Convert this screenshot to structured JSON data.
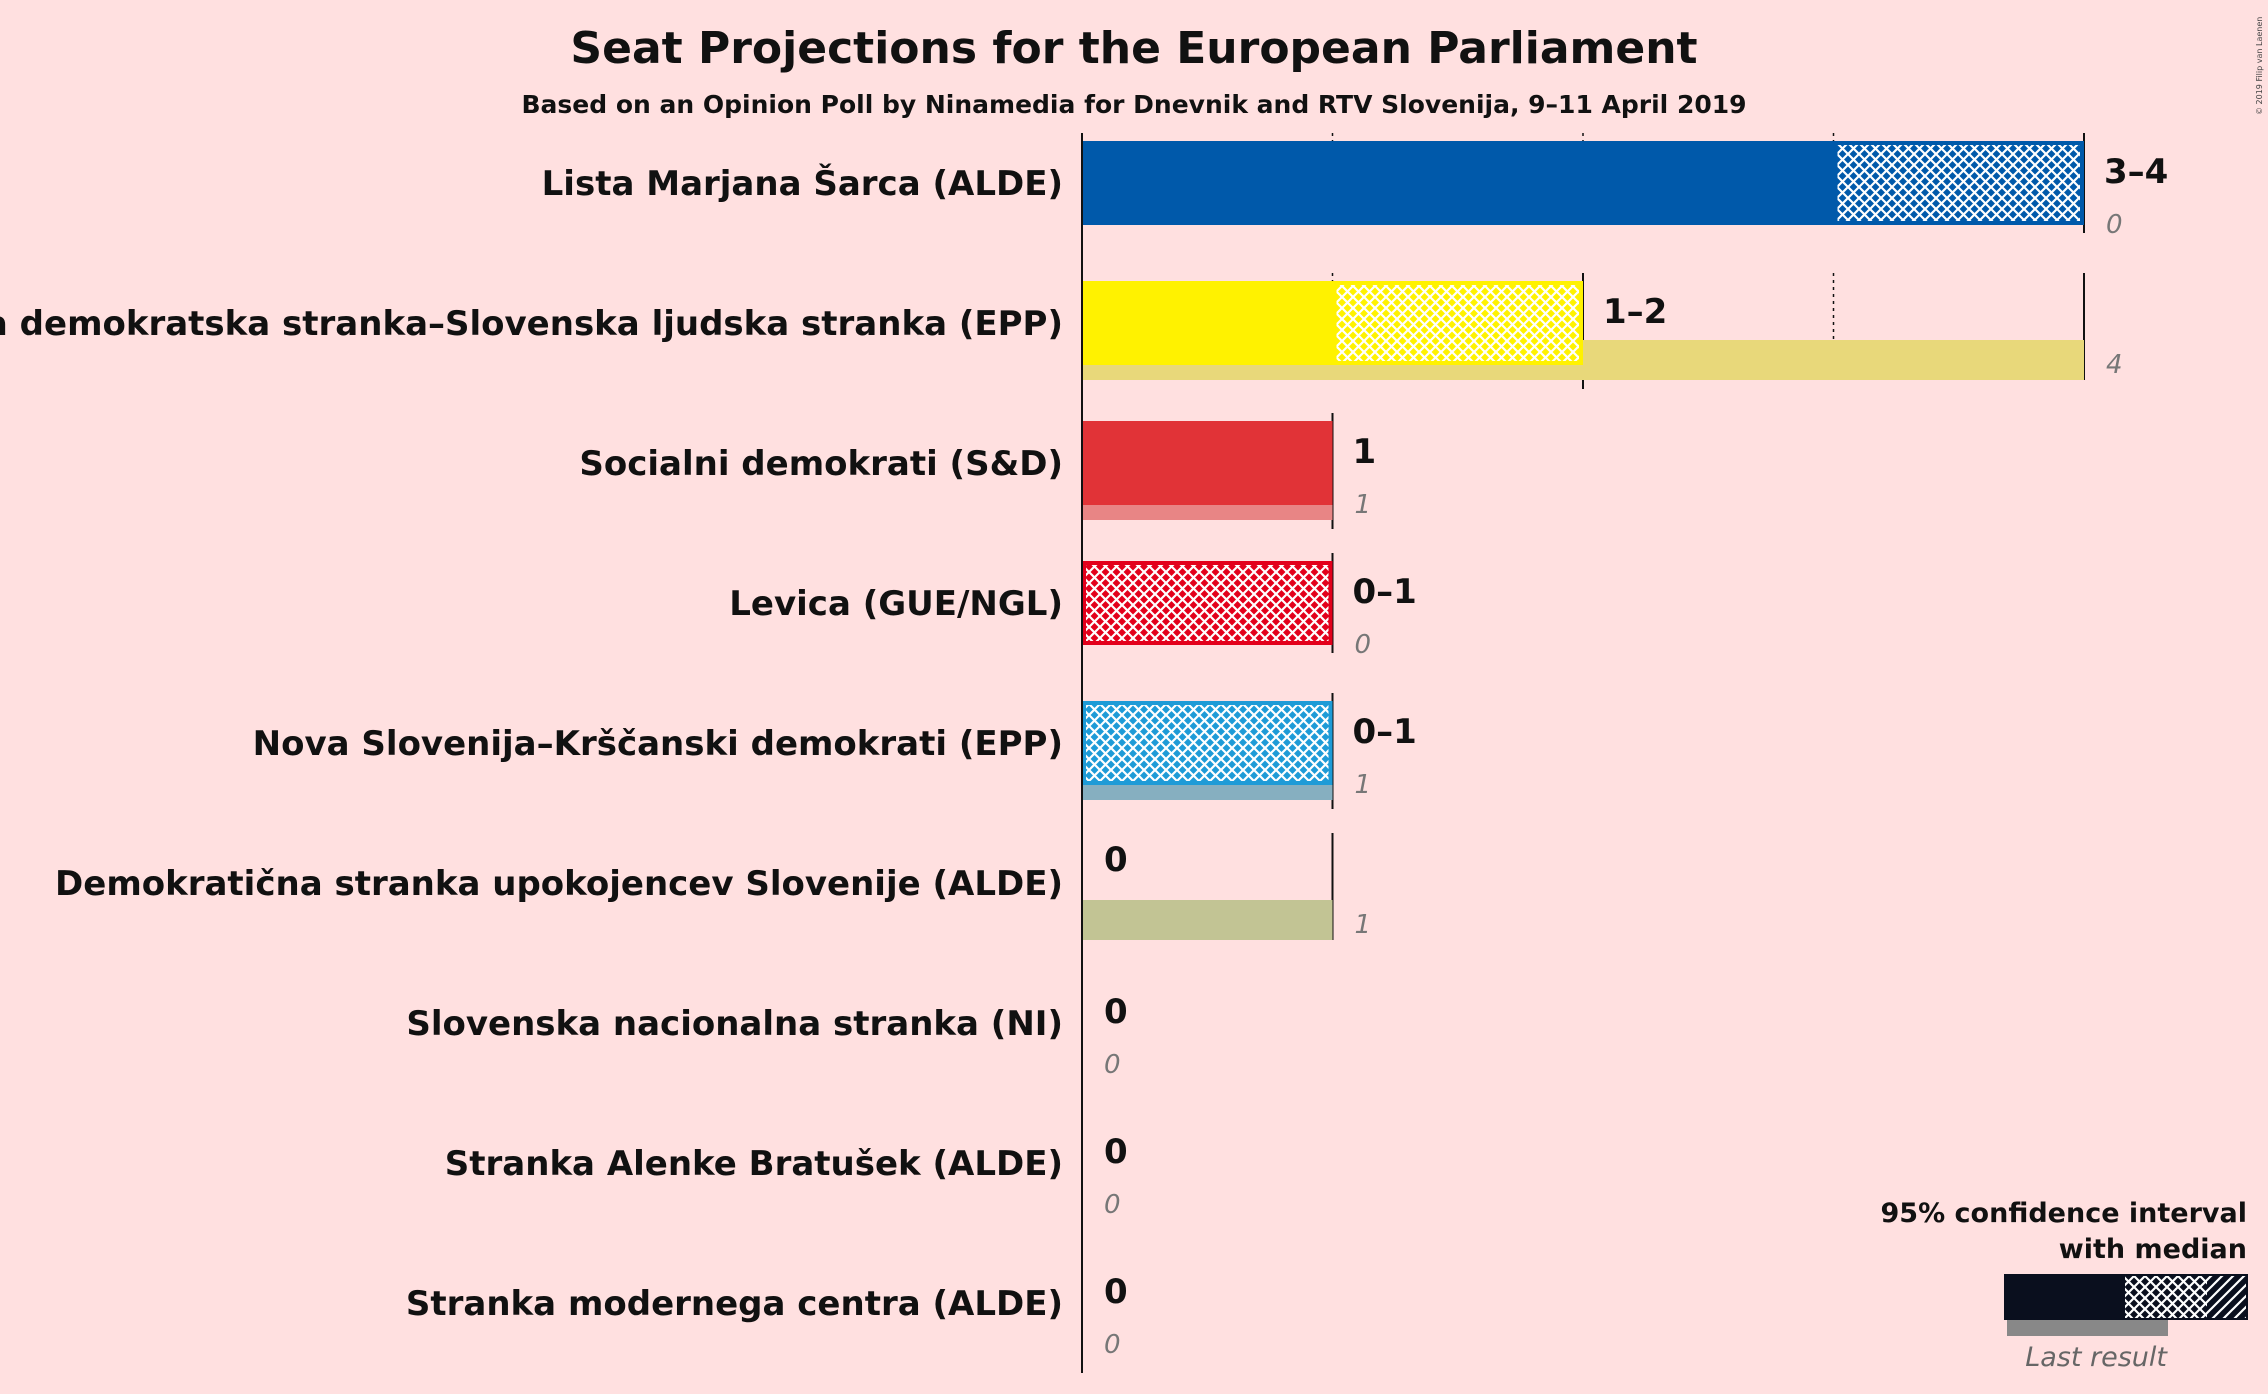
{
  "chart_data": {
    "type": "bar",
    "orientation": "horizontal",
    "title": "Seat Projections for the European Parliament",
    "subtitle": "Based on an Opinion Poll by Ninamedia for Dnevnik and RTV Slovenija, 9–11 April 2019",
    "xlim": [
      0,
      4
    ],
    "gridlines": [
      1,
      2,
      3,
      4
    ],
    "series": [
      {
        "name": "Lista Marjana Šarca (ALDE)",
        "low": 3,
        "median": 3,
        "high": 4,
        "range_label": "3–4",
        "last_result": 0,
        "last_label": "0",
        "color": "#0059aa",
        "last_color": "#0059aa"
      },
      {
        "name": "Slovenska demokratska stranka–Slovenska ljudska stranka (EPP)",
        "low": 1,
        "median": 1,
        "high": 2,
        "range_label": "1–2",
        "last_result": 4,
        "last_label": "4",
        "color": "#fff200",
        "last_color": "#e8d87a"
      },
      {
        "name": "Socialni demokrati (S&D)",
        "low": 1,
        "median": 1,
        "high": 1,
        "range_label": "1",
        "last_result": 1,
        "last_label": "1",
        "color": "#e13337",
        "last_color": "#e88585"
      },
      {
        "name": "Levica (GUE/NGL)",
        "low": 0,
        "median": 0,
        "high": 1,
        "range_label": "0–1",
        "last_result": 0,
        "last_label": "0",
        "color": "#e3001b",
        "last_color": "#e3001b"
      },
      {
        "name": "Nova Slovenija–Krščanski demokrati (EPP)",
        "low": 0,
        "median": 0,
        "high": 1,
        "range_label": "0–1",
        "last_result": 1,
        "last_label": "1",
        "color": "#1e9bd7",
        "last_color": "#86afc0"
      },
      {
        "name": "Demokratična stranka upokojencev Slovenije (ALDE)",
        "low": 0,
        "median": 0,
        "high": 0,
        "range_label": "0",
        "last_result": 1,
        "last_label": "1",
        "color": "#8fa832",
        "last_color": "#c2c494"
      },
      {
        "name": "Slovenska nacionalna stranka (NI)",
        "low": 0,
        "median": 0,
        "high": 0,
        "range_label": "0",
        "last_result": 0,
        "last_label": "0",
        "color": "#333333",
        "last_color": "#999999"
      },
      {
        "name": "Stranka Alenke Bratušek (ALDE)",
        "low": 0,
        "median": 0,
        "high": 0,
        "range_label": "0",
        "last_result": 0,
        "last_label": "0",
        "color": "#333333",
        "last_color": "#999999"
      },
      {
        "name": "Stranka modernega centra (ALDE)",
        "low": 0,
        "median": 0,
        "high": 0,
        "range_label": "0",
        "last_result": 0,
        "last_label": "0",
        "color": "#333333",
        "last_color": "#999999"
      }
    ],
    "legend": {
      "line1": "95% confidence interval",
      "line2": "with median",
      "last_result": "Last result",
      "placement": "bottom-right"
    },
    "copyright": "© 2019 Filip van Laenen"
  }
}
